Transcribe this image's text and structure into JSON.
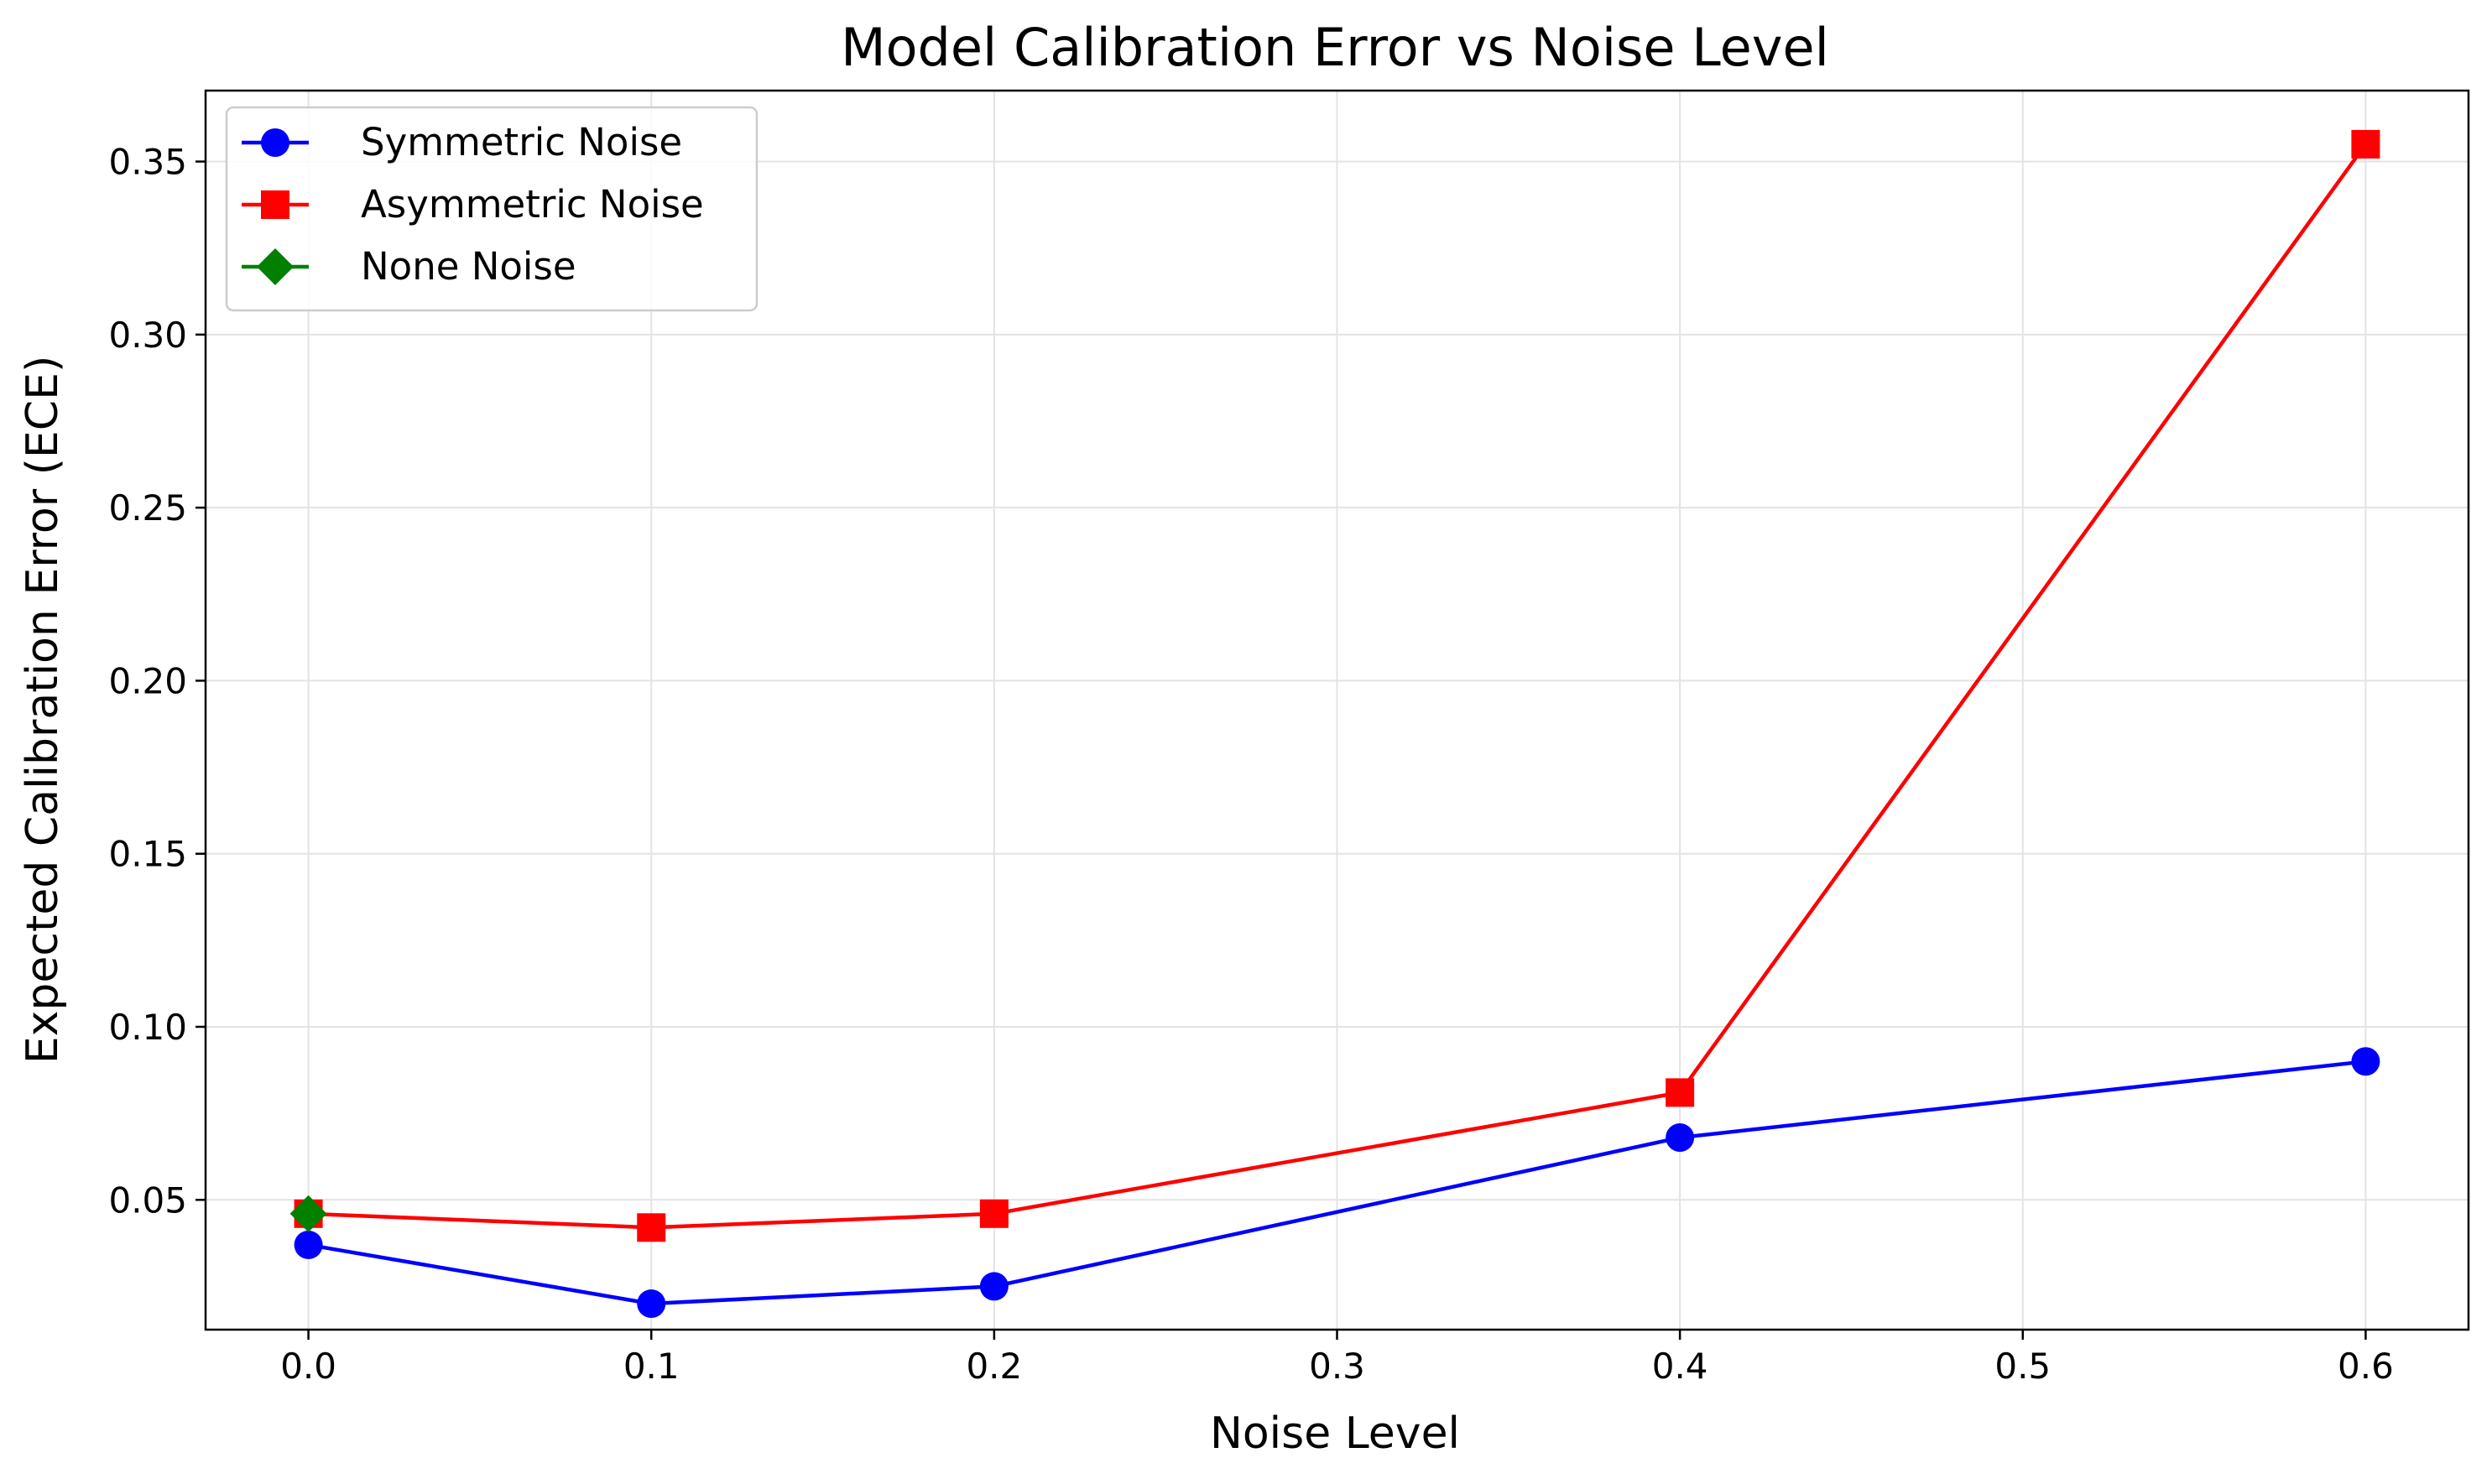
{
  "chart_data": {
    "type": "line",
    "title": "Model Calibration Error vs Noise Level",
    "xlabel": "Noise Level",
    "ylabel": "Expected Calibration Error (ECE)",
    "xlim": [
      -0.03,
      0.63
    ],
    "ylim": [
      0.0125,
      0.3705
    ],
    "xticks": [
      0.0,
      0.1,
      0.2,
      0.3,
      0.4,
      0.5,
      0.6
    ],
    "xtick_labels": [
      "0.0",
      "0.1",
      "0.2",
      "0.3",
      "0.4",
      "0.5",
      "0.6"
    ],
    "yticks": [
      0.05,
      0.1,
      0.15,
      0.2,
      0.25,
      0.3,
      0.35
    ],
    "ytick_labels": [
      "0.05",
      "0.10",
      "0.15",
      "0.20",
      "0.25",
      "0.30",
      "0.35"
    ],
    "grid": true,
    "legend_position": "top-left",
    "series": [
      {
        "name": "Symmetric Noise",
        "color": "#0000ff",
        "marker": "circle",
        "x": [
          0.0,
          0.1,
          0.2,
          0.4,
          0.6
        ],
        "y": [
          0.037,
          0.02,
          0.025,
          0.068,
          0.09
        ]
      },
      {
        "name": "Asymmetric Noise",
        "color": "#ff0000",
        "marker": "square",
        "x": [
          0.0,
          0.1,
          0.2,
          0.4,
          0.6
        ],
        "y": [
          0.046,
          0.042,
          0.046,
          0.081,
          0.355
        ]
      },
      {
        "name": "None Noise",
        "color": "#008000",
        "marker": "diamond",
        "x": [
          0.0
        ],
        "y": [
          0.046
        ]
      }
    ]
  }
}
